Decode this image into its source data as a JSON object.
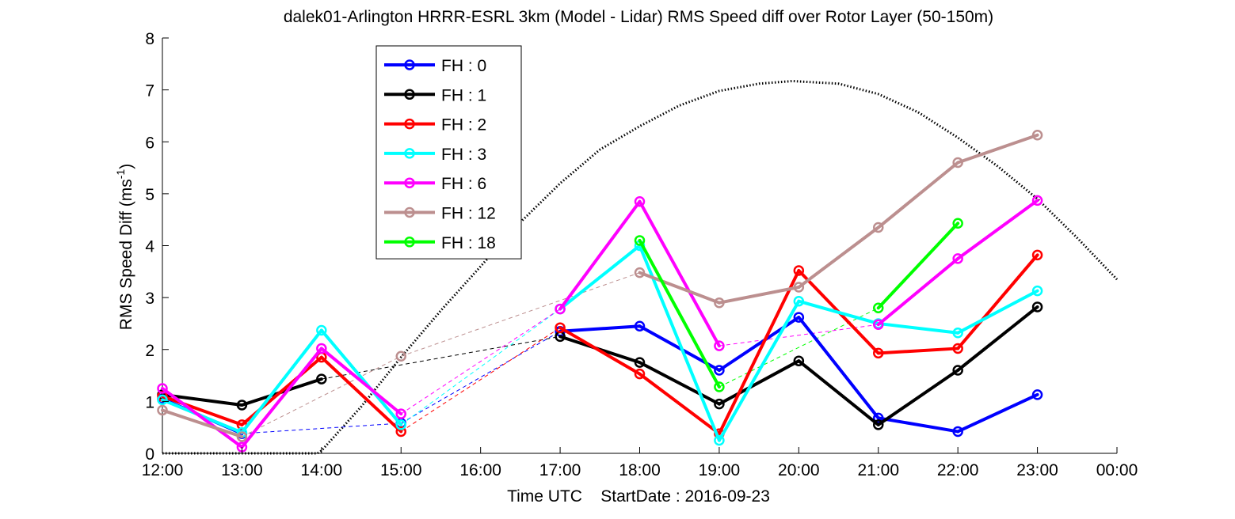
{
  "chart_data": {
    "type": "line",
    "title": "dalek01-Arlington HRRR-ESRL 3km (Model - Lidar) RMS Speed diff over Rotor Layer (50-150m)",
    "xlabel": "Time UTC    StartDate : 2016-09-23",
    "ylabel_main": "RMS Speed Diff (ms",
    "ylabel_sup": "-1",
    "ylabel_close": ")",
    "ylim": [
      0,
      8
    ],
    "xlim": [
      12,
      24
    ],
    "x_tick_values": [
      12,
      13,
      14,
      15,
      16,
      17,
      18,
      19,
      20,
      21,
      22,
      23,
      24
    ],
    "x_tick_labels": [
      "12:00",
      "13:00",
      "14:00",
      "15:00",
      "16:00",
      "17:00",
      "18:00",
      "19:00",
      "20:00",
      "21:00",
      "22:00",
      "23:00",
      "00:00"
    ],
    "y_tick_values": [
      0,
      1,
      2,
      3,
      4,
      5,
      6,
      7,
      8
    ],
    "y_tick_labels": [
      "0",
      "1",
      "2",
      "3",
      "4",
      "5",
      "6",
      "7",
      "8"
    ],
    "grid": false,
    "legend_position": "top-left",
    "series": [
      {
        "name": "FH : 0",
        "color": "#0000ff",
        "x": [
          12,
          13,
          15,
          17,
          18,
          19,
          20,
          21,
          22,
          23
        ],
        "y": [
          1.05,
          0.38,
          0.58,
          2.35,
          2.45,
          1.6,
          2.62,
          0.68,
          0.42,
          1.13
        ]
      },
      {
        "name": "FH : 1",
        "color": "#000000",
        "x": [
          12,
          13,
          14,
          17,
          18,
          19,
          20,
          21,
          22,
          23
        ],
        "y": [
          1.13,
          0.93,
          1.43,
          2.25,
          1.75,
          0.95,
          1.78,
          0.55,
          1.6,
          2.82
        ]
      },
      {
        "name": "FH : 2",
        "color": "#ff0000",
        "x": [
          12,
          13,
          14,
          15,
          17,
          18,
          19,
          20,
          21,
          22,
          23
        ],
        "y": [
          1.1,
          0.55,
          1.85,
          0.42,
          2.42,
          1.53,
          0.38,
          3.52,
          1.93,
          2.02,
          3.82
        ]
      },
      {
        "name": "FH : 3",
        "color": "#00ffff",
        "x": [
          12,
          13,
          14,
          15,
          17,
          18,
          19,
          20,
          21,
          22,
          23
        ],
        "y": [
          1.03,
          0.4,
          2.37,
          0.55,
          2.78,
          4.0,
          0.25,
          2.93,
          2.5,
          2.32,
          3.13
        ]
      },
      {
        "name": "FH : 6",
        "color": "#ff00ff",
        "x": [
          12,
          13,
          14,
          15,
          17,
          18,
          19,
          21,
          22,
          23
        ],
        "y": [
          1.25,
          0.12,
          2.02,
          0.76,
          2.78,
          4.85,
          2.07,
          2.48,
          3.75,
          4.87
        ]
      },
      {
        "name": "FH : 12",
        "color": "#bc8f8f",
        "x": [
          12,
          13,
          15,
          18,
          19,
          20,
          21,
          22,
          23
        ],
        "y": [
          0.83,
          0.32,
          1.87,
          3.48,
          2.9,
          3.2,
          4.35,
          5.6,
          6.13
        ]
      },
      {
        "name": "FH : 18",
        "color": "#00ff00",
        "x": [
          18,
          19,
          21,
          22
        ],
        "y": [
          4.1,
          1.28,
          2.8,
          4.43
        ]
      }
    ],
    "reference_curve": {
      "style": "dotted",
      "color": "#000000",
      "x": [
        12.0,
        13.0,
        13.95,
        14.0,
        14.5,
        15.0,
        15.5,
        16.0,
        16.5,
        17.0,
        17.5,
        18.0,
        18.5,
        19.0,
        19.5,
        19.92,
        20.5,
        21.0,
        21.5,
        22.0,
        22.5,
        23.0,
        23.5,
        24.0
      ],
      "y": [
        0.0,
        0.0,
        0.0,
        0.05,
        0.9,
        1.85,
        2.75,
        3.6,
        4.45,
        5.2,
        5.85,
        6.3,
        6.7,
        6.98,
        7.12,
        7.17,
        7.12,
        6.92,
        6.57,
        6.08,
        5.53,
        4.9,
        4.15,
        3.35
      ]
    }
  }
}
